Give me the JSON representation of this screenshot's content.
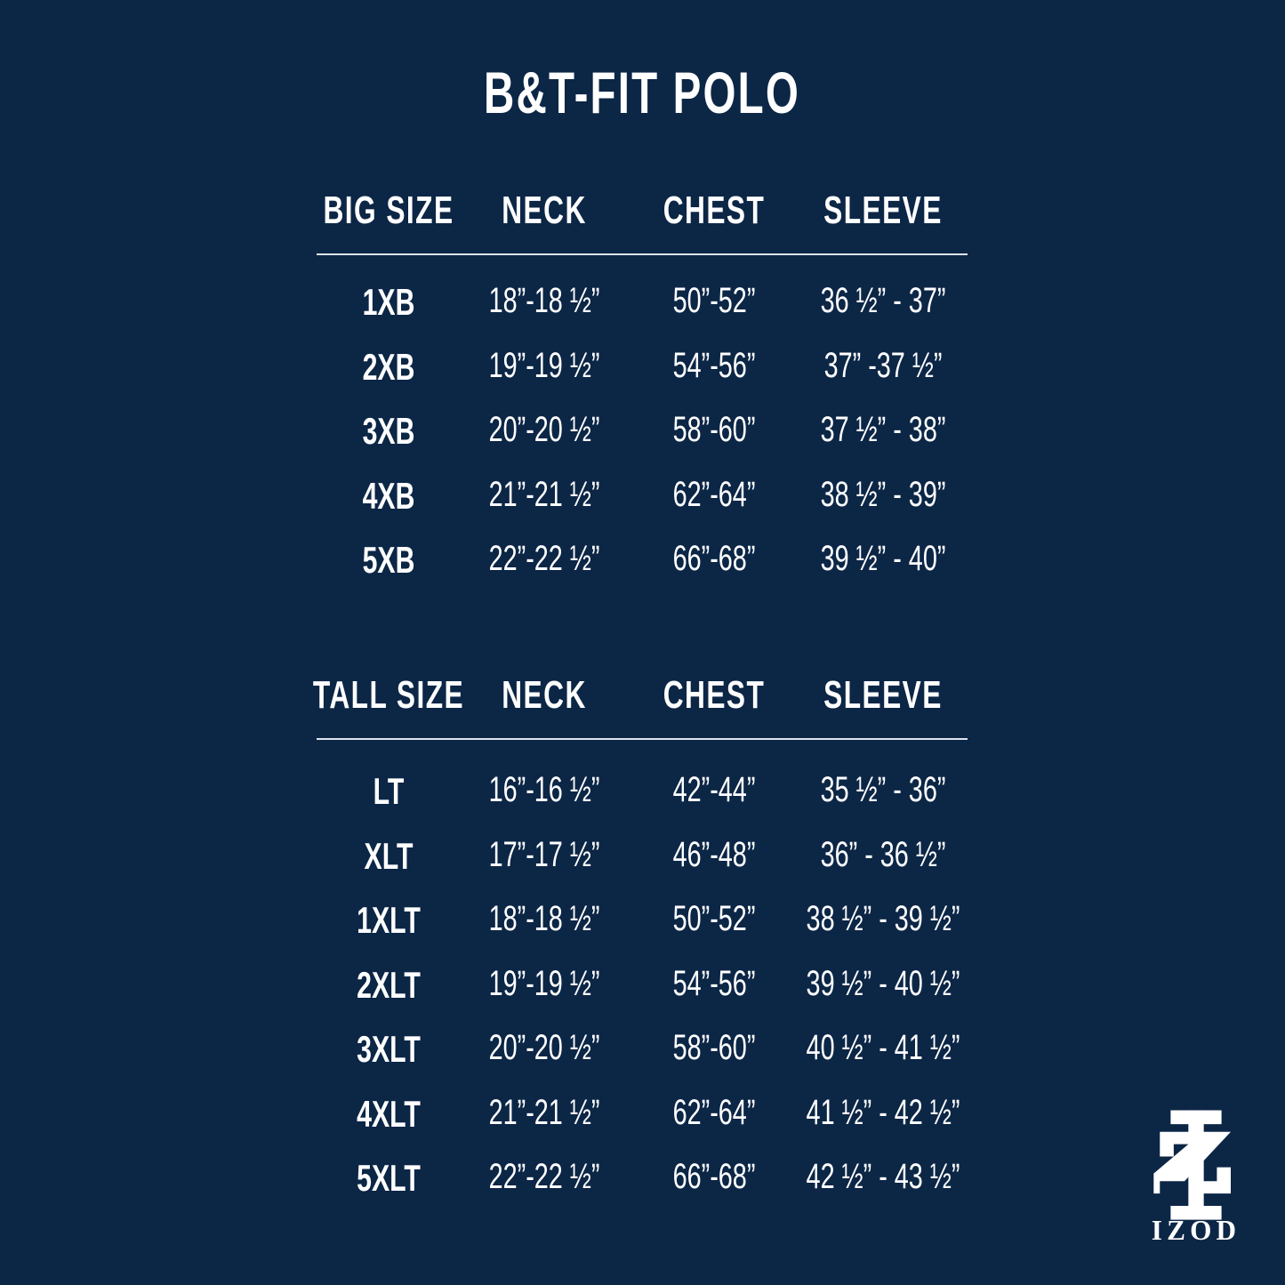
{
  "title": "B&T-FIT POLO",
  "sections": [
    {
      "headers": [
        "BIG SIZE",
        "NECK",
        "CHEST",
        "SLEEVE"
      ],
      "rows": [
        [
          "1XB",
          "18”-18 ½”",
          "50”-52”",
          "36 ½” - 37”"
        ],
        [
          "2XB",
          "19”-19 ½”",
          "54”-56”",
          "37” -37 ½”"
        ],
        [
          "3XB",
          "20”-20 ½”",
          "58”-60”",
          "37 ½” - 38”"
        ],
        [
          "4XB",
          "21”-21 ½”",
          "62”-64”",
          "38 ½” - 39”"
        ],
        [
          "5XB",
          "22”-22 ½”",
          "66”-68”",
          "39 ½” - 40”"
        ]
      ]
    },
    {
      "headers": [
        "TALL SIZE",
        "NECK",
        "CHEST",
        "SLEEVE"
      ],
      "rows": [
        [
          "LT",
          "16”-16 ½”",
          "42”-44”",
          "35 ½” - 36”"
        ],
        [
          "XLT",
          "17”-17 ½”",
          "46”-48”",
          "36” - 36 ½”"
        ],
        [
          "1XLT",
          "18”-18 ½”",
          "50”-52”",
          "38 ½” - 39 ½”"
        ],
        [
          "2XLT",
          "19”-19 ½”",
          "54”-56”",
          "39 ½” - 40 ½”"
        ],
        [
          "3XLT",
          "20”-20 ½”",
          "58”-60”",
          "40 ½” - 41 ½”"
        ],
        [
          "4XLT",
          "21”-21 ½”",
          "62”-64”",
          "41 ½” - 42 ½”"
        ],
        [
          "5XLT",
          "22”-22 ½”",
          "66”-68”",
          "42 ½” - 43 ½”"
        ]
      ]
    }
  ],
  "logo": {
    "text": "IZOD"
  },
  "colors": {
    "background": "#0c2646",
    "text": "#ffffff"
  }
}
